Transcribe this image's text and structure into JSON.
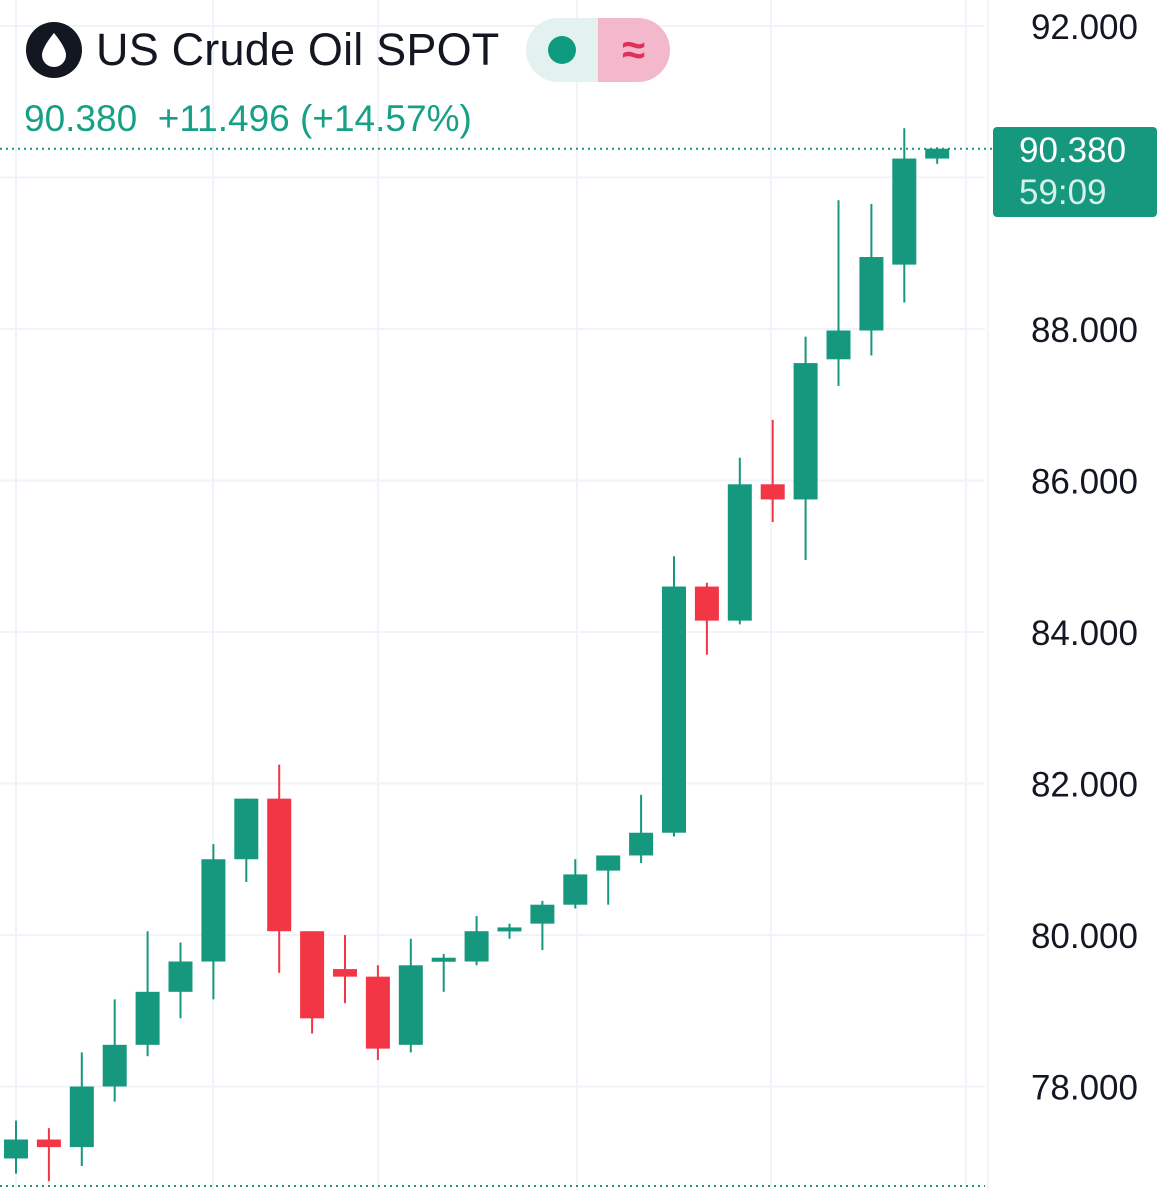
{
  "symbol": {
    "title": "US Crude Oil SPOT",
    "approx_symbol": "≈"
  },
  "quote": {
    "last": "90.380",
    "change": "+11.496",
    "change_pct": "(+14.57%)"
  },
  "price_label": {
    "value": "90.380",
    "countdown": "59:09"
  },
  "colors": {
    "up": "#15987d",
    "down": "#f23645",
    "grid": "#f0f3fa",
    "text": "#131722"
  },
  "chart_data": {
    "type": "candlestick",
    "title": "US Crude Oil SPOT",
    "y_axis": {
      "side": "right",
      "ylim": [
        76.75,
        92.35
      ],
      "ticks": [
        "92.000",
        "88.000",
        "86.000",
        "84.000",
        "82.000",
        "80.000",
        "78.000"
      ]
    },
    "last_price": 90.38,
    "candles": [
      {
        "o": 77.05,
        "h": 77.55,
        "l": 76.85,
        "c": 77.3
      },
      {
        "o": 77.3,
        "h": 77.45,
        "l": 76.75,
        "c": 77.2
      },
      {
        "o": 77.2,
        "h": 78.45,
        "l": 76.95,
        "c": 78.0
      },
      {
        "o": 78.0,
        "h": 79.15,
        "l": 77.8,
        "c": 78.55
      },
      {
        "o": 78.55,
        "h": 80.05,
        "l": 78.4,
        "c": 79.25
      },
      {
        "o": 79.25,
        "h": 79.9,
        "l": 78.9,
        "c": 79.65
      },
      {
        "o": 79.65,
        "h": 81.2,
        "l": 79.15,
        "c": 81.0
      },
      {
        "o": 81.0,
        "h": 81.8,
        "l": 80.7,
        "c": 81.8
      },
      {
        "o": 81.8,
        "h": 82.25,
        "l": 79.5,
        "c": 80.05
      },
      {
        "o": 80.05,
        "h": 80.05,
        "l": 78.7,
        "c": 78.9
      },
      {
        "o": 79.55,
        "h": 80.0,
        "l": 79.1,
        "c": 79.45
      },
      {
        "o": 79.45,
        "h": 79.6,
        "l": 78.35,
        "c": 78.5
      },
      {
        "o": 78.55,
        "h": 79.95,
        "l": 78.45,
        "c": 79.6
      },
      {
        "o": 79.65,
        "h": 79.75,
        "l": 79.25,
        "c": 79.7
      },
      {
        "o": 79.65,
        "h": 80.25,
        "l": 79.6,
        "c": 80.05
      },
      {
        "o": 80.05,
        "h": 80.15,
        "l": 79.95,
        "c": 80.1
      },
      {
        "o": 80.15,
        "h": 80.45,
        "l": 79.8,
        "c": 80.4
      },
      {
        "o": 80.4,
        "h": 81.0,
        "l": 80.35,
        "c": 80.8
      },
      {
        "o": 80.85,
        "h": 81.05,
        "l": 80.4,
        "c": 81.05
      },
      {
        "o": 81.05,
        "h": 81.85,
        "l": 80.95,
        "c": 81.35
      },
      {
        "o": 81.35,
        "h": 85.0,
        "l": 81.3,
        "c": 84.6
      },
      {
        "o": 84.6,
        "h": 84.65,
        "l": 83.7,
        "c": 84.15
      },
      {
        "o": 84.15,
        "h": 86.3,
        "l": 84.1,
        "c": 85.95
      },
      {
        "o": 85.95,
        "h": 86.8,
        "l": 85.45,
        "c": 85.75
      },
      {
        "o": 85.75,
        "h": 87.9,
        "l": 84.95,
        "c": 87.55
      },
      {
        "o": 87.6,
        "h": 89.7,
        "l": 87.25,
        "c": 87.98
      },
      {
        "o": 87.98,
        "h": 89.65,
        "l": 87.65,
        "c": 88.95
      },
      {
        "o": 88.85,
        "h": 90.65,
        "l": 88.35,
        "c": 90.25
      },
      {
        "o": 90.25,
        "h": 90.4,
        "l": 90.18,
        "c": 90.38
      }
    ]
  }
}
